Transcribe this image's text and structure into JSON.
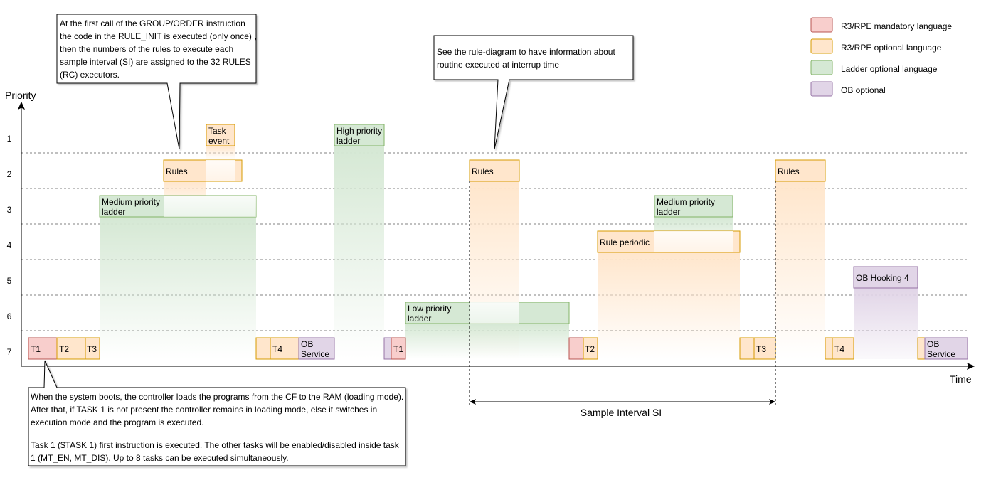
{
  "axes": {
    "y_label": "Priority",
    "x_label": "Time",
    "levels": [
      "1",
      "2",
      "3",
      "4",
      "5",
      "6",
      "7"
    ]
  },
  "legend": [
    {
      "key": "mandatory",
      "label": "R3/RPE mandatory language"
    },
    {
      "key": "r3opt",
      "label": "R3/RPE optional language"
    },
    {
      "key": "ladder",
      "label": "Ladder optional language"
    },
    {
      "key": "ob",
      "label": "OB optional"
    }
  ],
  "palette": {
    "mandatory": {
      "fill": "#f8cecc",
      "stroke": "#b85450"
    },
    "r3opt": {
      "fill": "#ffe6cc",
      "stroke": "#d79b00"
    },
    "ladder": {
      "fill": "#d5e8d4",
      "stroke": "#82b366"
    },
    "ob": {
      "fill": "#e1d5e7",
      "stroke": "#9673a6"
    }
  },
  "boxes": {
    "t1a": "T1",
    "t2a": "T2",
    "t3a": "T3",
    "t4a": "T4",
    "ob_service_a": [
      "OB",
      "Service"
    ],
    "t1b": "T1",
    "t2b": "T2",
    "t3b": "T3",
    "t4b": "T4",
    "ob_service_b": [
      "OB",
      "Service"
    ],
    "rules_a": "Rules",
    "task_event": [
      "Task",
      "event"
    ],
    "medium_ladder_a": [
      "Medium priority",
      "ladder"
    ],
    "high_ladder": [
      "High priority",
      "ladder"
    ],
    "rules_b": "Rules",
    "low_ladder": [
      "Low priority",
      "ladder"
    ],
    "rule_periodic": "Rule periodic",
    "medium_ladder_b": [
      "Medium priority",
      "ladder"
    ],
    "rules_c": "Rules",
    "ob_hooking": "OB Hooking 4"
  },
  "callouts": {
    "rule_init": "At the first call of the GROUP/ORDER instruction the code in the RULE_INIT is executed (only once) , then the numbers of the rules to execute each sample interval (SI) are assigned to the 32 RULES (RC) executors.",
    "interrupt": "See the rule-diagram to have information about routine executed at interrup time",
    "boot_p1": "When the system boots, the controller loads the programs from the CF to the RAM (loading mode). After that, if TASK 1 is not present the controller remains in loading mode, else it switches in execution mode and the program is executed.",
    "boot_p2": "Task 1 ($TASK 1) first instruction is executed. The other tasks will be enabled/disabled inside task 1 (MT_EN, MT_DIS). Up to 8 tasks can be executed simultaneously."
  },
  "sample_interval": "Sample Interval SI"
}
